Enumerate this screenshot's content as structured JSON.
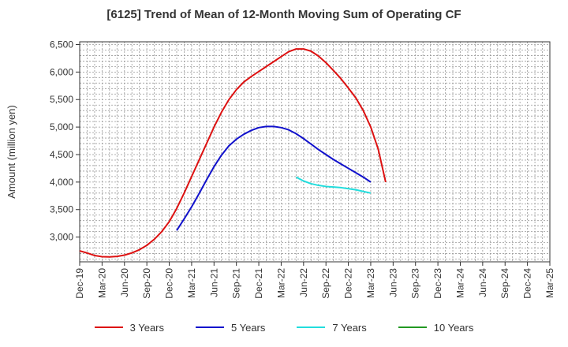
{
  "title": "[6125]  Trend of Mean of 12-Month Moving Sum of Operating CF",
  "chart_data": {
    "type": "line",
    "title": "[6125]  Trend of Mean of 12-Month Moving Sum of Operating CF",
    "xlabel": "",
    "ylabel": "Amount (million yen)",
    "ylim": [
      2550,
      6550
    ],
    "yticks": [
      3000,
      3500,
      4000,
      4500,
      5000,
      5500,
      6000,
      6500
    ],
    "ytick_labels": [
      "3,000",
      "3,500",
      "4,000",
      "4,500",
      "5,000",
      "5,500",
      "6,000",
      "6,500"
    ],
    "xticks": [
      "Dec-19",
      "Mar-20",
      "Jun-20",
      "Sep-20",
      "Dec-20",
      "Mar-21",
      "Jun-21",
      "Sep-21",
      "Dec-21",
      "Mar-22",
      "Jun-22",
      "Sep-22",
      "Dec-22",
      "Mar-23",
      "Jun-23",
      "Sep-23",
      "Dec-23",
      "Mar-24",
      "Jun-24",
      "Sep-24",
      "Dec-24",
      "Mar-25"
    ],
    "grid": true,
    "legend_position": "bottom",
    "series": [
      {
        "name": "3 Years",
        "color": "#dd1111",
        "points": [
          [
            0,
            2750
          ],
          [
            1,
            2710
          ],
          [
            2,
            2665
          ],
          [
            3,
            2643
          ],
          [
            4,
            2640
          ],
          [
            5,
            2648
          ],
          [
            6,
            2672
          ],
          [
            7,
            2712
          ],
          [
            8,
            2770
          ],
          [
            9,
            2850
          ],
          [
            10,
            2960
          ],
          [
            11,
            3100
          ],
          [
            12,
            3280
          ],
          [
            13,
            3520
          ],
          [
            14,
            3800
          ],
          [
            15,
            4100
          ],
          [
            16,
            4400
          ],
          [
            17,
            4700
          ],
          [
            18,
            5000
          ],
          [
            19,
            5270
          ],
          [
            20,
            5500
          ],
          [
            21,
            5680
          ],
          [
            22,
            5820
          ],
          [
            23,
            5920
          ],
          [
            24,
            6010
          ],
          [
            25,
            6100
          ],
          [
            26,
            6190
          ],
          [
            27,
            6280
          ],
          [
            28,
            6370
          ],
          [
            29,
            6420
          ],
          [
            30,
            6420
          ],
          [
            31,
            6380
          ],
          [
            32,
            6290
          ],
          [
            33,
            6170
          ],
          [
            34,
            6030
          ],
          [
            35,
            5880
          ],
          [
            36,
            5710
          ],
          [
            37,
            5530
          ],
          [
            38,
            5300
          ],
          [
            39,
            5000
          ],
          [
            40,
            4600
          ],
          [
            41,
            4000
          ]
        ]
      },
      {
        "name": "5 Years",
        "color": "#1111cc",
        "points": [
          [
            13,
            3120
          ],
          [
            14,
            3330
          ],
          [
            15,
            3550
          ],
          [
            16,
            3790
          ],
          [
            17,
            4040
          ],
          [
            18,
            4280
          ],
          [
            19,
            4490
          ],
          [
            20,
            4660
          ],
          [
            21,
            4780
          ],
          [
            22,
            4870
          ],
          [
            23,
            4940
          ],
          [
            24,
            4990
          ],
          [
            25,
            5010
          ],
          [
            26,
            5010
          ],
          [
            27,
            4990
          ],
          [
            28,
            4950
          ],
          [
            29,
            4880
          ],
          [
            30,
            4790
          ],
          [
            31,
            4690
          ],
          [
            32,
            4590
          ],
          [
            33,
            4500
          ],
          [
            34,
            4410
          ],
          [
            35,
            4330
          ],
          [
            36,
            4250
          ],
          [
            37,
            4170
          ],
          [
            38,
            4090
          ],
          [
            39,
            4000
          ]
        ]
      },
      {
        "name": "7 Years",
        "color": "#22dddd",
        "points": [
          [
            29,
            4090
          ],
          [
            30,
            4020
          ],
          [
            31,
            3970
          ],
          [
            32,
            3940
          ],
          [
            33,
            3920
          ],
          [
            34,
            3910
          ],
          [
            35,
            3900
          ],
          [
            36,
            3880
          ],
          [
            37,
            3860
          ],
          [
            38,
            3830
          ],
          [
            39,
            3800
          ]
        ]
      },
      {
        "name": "10 Years",
        "color": "#229922",
        "points": []
      }
    ]
  },
  "legend": [
    {
      "label": "3 Years",
      "color": "#dd1111"
    },
    {
      "label": "5 Years",
      "color": "#1111cc"
    },
    {
      "label": "7 Years",
      "color": "#22dddd"
    },
    {
      "label": "10 Years",
      "color": "#229922"
    }
  ]
}
